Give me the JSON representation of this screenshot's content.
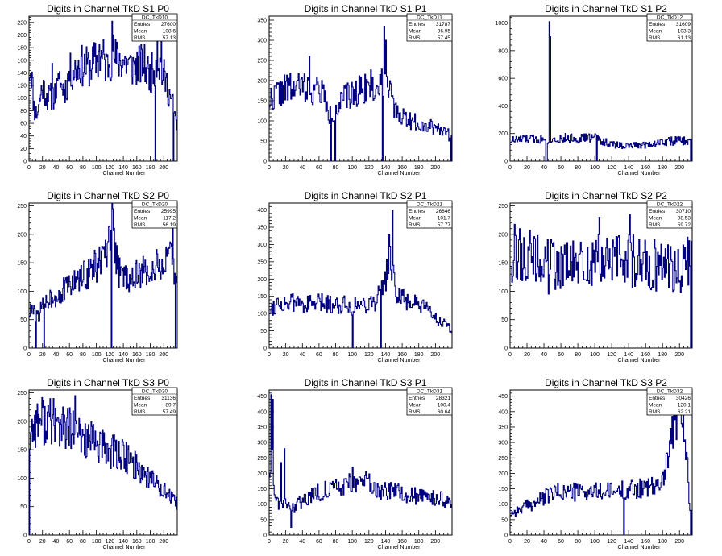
{
  "page": {
    "background": "#ffffff",
    "line_color": "#00007f",
    "axis_color": "#000000"
  },
  "chart_data": [
    {
      "type": "histogram",
      "id": "TkD10",
      "title": "Digits in Channel TkD S1 P0",
      "xlabel": "Channel Number",
      "xlim": [
        0,
        220
      ],
      "ylim": [
        0,
        230
      ],
      "xticks": [
        0,
        20,
        40,
        60,
        80,
        100,
        120,
        140,
        160,
        180,
        200
      ],
      "yticks": [
        0,
        20,
        40,
        60,
        80,
        100,
        120,
        140,
        160,
        180,
        200,
        220
      ],
      "stats": {
        "name": "DC_TkD10",
        "entries": "27600",
        "mean": "108.6",
        "rms": "57.13"
      },
      "keypoints": [
        [
          0,
          145
        ],
        [
          3,
          150
        ],
        [
          8,
          80
        ],
        [
          12,
          75
        ],
        [
          20,
          120
        ],
        [
          28,
          100
        ],
        [
          38,
          105
        ],
        [
          45,
          120
        ],
        [
          55,
          115
        ],
        [
          60,
          140
        ],
        [
          70,
          145
        ],
        [
          75,
          155
        ],
        [
          80,
          150
        ],
        [
          90,
          150
        ],
        [
          100,
          160
        ],
        [
          110,
          165
        ],
        [
          115,
          150
        ],
        [
          120,
          160
        ],
        [
          125,
          170
        ],
        [
          130,
          160
        ],
        [
          140,
          160
        ],
        [
          150,
          150
        ],
        [
          160,
          150
        ],
        [
          170,
          155
        ],
        [
          180,
          135
        ],
        [
          188,
          155
        ],
        [
          192,
          160
        ],
        [
          198,
          140
        ],
        [
          205,
          120
        ],
        [
          210,
          100
        ],
        [
          215,
          85
        ],
        [
          218,
          60
        ]
      ],
      "spikes": [
        [
          123,
          222
        ],
        [
          104,
          185
        ],
        [
          187,
          0
        ],
        [
          190,
          225
        ],
        [
          196,
          200
        ],
        [
          214,
          0
        ],
        [
          34,
          155
        ],
        [
          45,
          142
        ]
      ],
      "seed": 11
    },
    {
      "type": "histogram",
      "id": "TkD11",
      "title": "Digits in Channel TkD S1 P1",
      "xlabel": "Channel Number",
      "xlim": [
        0,
        220
      ],
      "ylim": [
        0,
        360
      ],
      "xticks": [
        0,
        20,
        40,
        60,
        80,
        100,
        120,
        140,
        160,
        180,
        200
      ],
      "yticks": [
        0,
        50,
        100,
        150,
        200,
        250,
        300,
        350
      ],
      "stats": {
        "name": "DC_TkD11",
        "entries": "31787",
        "mean": "96.95",
        "rms": "57.45"
      },
      "keypoints": [
        [
          0,
          150
        ],
        [
          10,
          170
        ],
        [
          20,
          180
        ],
        [
          30,
          180
        ],
        [
          40,
          185
        ],
        [
          50,
          180
        ],
        [
          60,
          175
        ],
        [
          66,
          170
        ],
        [
          70,
          120
        ],
        [
          75,
          110
        ],
        [
          80,
          130
        ],
        [
          85,
          140
        ],
        [
          90,
          155
        ],
        [
          100,
          165
        ],
        [
          110,
          180
        ],
        [
          120,
          190
        ],
        [
          130,
          175
        ],
        [
          135,
          200
        ],
        [
          140,
          210
        ],
        [
          145,
          200
        ],
        [
          150,
          120
        ],
        [
          160,
          115
        ],
        [
          170,
          100
        ],
        [
          180,
          95
        ],
        [
          190,
          90
        ],
        [
          200,
          85
        ],
        [
          210,
          80
        ],
        [
          218,
          60
        ]
      ],
      "spikes": [
        [
          138,
          335
        ],
        [
          140,
          300
        ],
        [
          74,
          0
        ],
        [
          79,
          0
        ],
        [
          136,
          0
        ],
        [
          218,
          0
        ],
        [
          48,
          260
        ],
        [
          112,
          180
        ]
      ],
      "seed": 22
    },
    {
      "type": "histogram",
      "id": "TkD12",
      "title": "Digits in Channel TkD S1 P2",
      "xlabel": "Channel Number",
      "xlim": [
        0,
        215
      ],
      "ylim": [
        0,
        1050
      ],
      "xticks": [
        0,
        20,
        40,
        60,
        80,
        100,
        120,
        140,
        160,
        180,
        200
      ],
      "yticks": [
        0,
        200,
        400,
        600,
        800,
        1000
      ],
      "stats": {
        "name": "DC_TkD12",
        "entries": "31609",
        "mean": "103.3",
        "rms": "61.13"
      },
      "keypoints": [
        [
          0,
          150
        ],
        [
          20,
          160
        ],
        [
          40,
          160
        ],
        [
          60,
          165
        ],
        [
          80,
          165
        ],
        [
          100,
          170
        ],
        [
          120,
          120
        ],
        [
          140,
          110
        ],
        [
          160,
          120
        ],
        [
          180,
          140
        ],
        [
          200,
          150
        ],
        [
          212,
          140
        ]
      ],
      "spikes": [
        [
          46,
          1010
        ],
        [
          47,
          900
        ],
        [
          43,
          0
        ],
        [
          102,
          0
        ],
        [
          213,
          0
        ],
        [
          42,
          0
        ]
      ],
      "seed": 33
    },
    {
      "type": "histogram",
      "id": "TkD20",
      "title": "Digits in Channel TkD S2 P0",
      "xlabel": "Channel Number",
      "xlim": [
        0,
        220
      ],
      "ylim": [
        0,
        255
      ],
      "xticks": [
        0,
        20,
        40,
        60,
        80,
        100,
        120,
        140,
        160,
        180,
        200
      ],
      "yticks": [
        0,
        50,
        100,
        150,
        200,
        250
      ],
      "stats": {
        "name": "DC_TkD20",
        "entries": "25995",
        "mean": "117.2",
        "rms": "56.19"
      },
      "keypoints": [
        [
          0,
          60
        ],
        [
          5,
          70
        ],
        [
          10,
          55
        ],
        [
          15,
          60
        ],
        [
          25,
          85
        ],
        [
          35,
          90
        ],
        [
          45,
          95
        ],
        [
          55,
          105
        ],
        [
          65,
          115
        ],
        [
          75,
          120
        ],
        [
          85,
          130
        ],
        [
          95,
          140
        ],
        [
          105,
          150
        ],
        [
          115,
          165
        ],
        [
          120,
          180
        ],
        [
          123,
          230
        ],
        [
          126,
          200
        ],
        [
          130,
          150
        ],
        [
          135,
          130
        ],
        [
          145,
          125
        ],
        [
          155,
          125
        ],
        [
          165,
          130
        ],
        [
          175,
          135
        ],
        [
          185,
          140
        ],
        [
          195,
          145
        ],
        [
          205,
          150
        ],
        [
          212,
          160
        ],
        [
          218,
          110
        ]
      ],
      "spikes": [
        [
          124,
          245
        ],
        [
          122,
          0
        ],
        [
          10,
          0
        ],
        [
          22,
          0
        ],
        [
          213,
          225
        ],
        [
          217,
          0
        ]
      ],
      "seed": 44
    },
    {
      "type": "histogram",
      "id": "TkD21",
      "title": "Digits in Channel TkD S2 P1",
      "xlabel": "Channel Number",
      "xlim": [
        0,
        220
      ],
      "ylim": [
        0,
        420
      ],
      "xticks": [
        0,
        20,
        40,
        60,
        80,
        100,
        120,
        140,
        160,
        180,
        200
      ],
      "yticks": [
        0,
        50,
        100,
        150,
        200,
        250,
        300,
        350,
        400
      ],
      "stats": {
        "name": "DC_TkD21",
        "entries": "26846",
        "mean": "101.7",
        "rms": "57.77"
      },
      "keypoints": [
        [
          0,
          110
        ],
        [
          10,
          130
        ],
        [
          20,
          130
        ],
        [
          30,
          130
        ],
        [
          40,
          130
        ],
        [
          50,
          125
        ],
        [
          60,
          130
        ],
        [
          70,
          130
        ],
        [
          80,
          125
        ],
        [
          90,
          130
        ],
        [
          100,
          120
        ],
        [
          110,
          125
        ],
        [
          120,
          130
        ],
        [
          130,
          140
        ],
        [
          140,
          200
        ],
        [
          145,
          260
        ],
        [
          150,
          200
        ],
        [
          155,
          150
        ],
        [
          160,
          140
        ],
        [
          170,
          135
        ],
        [
          180,
          120
        ],
        [
          190,
          110
        ],
        [
          200,
          90
        ],
        [
          210,
          70
        ],
        [
          218,
          55
        ]
      ],
      "spikes": [
        [
          148,
          400
        ],
        [
          144,
          330
        ],
        [
          100,
          0
        ],
        [
          134,
          0
        ]
      ],
      "seed": 55
    },
    {
      "type": "histogram",
      "id": "TkD22",
      "title": "Digits in Channel TkD S2 P2",
      "xlabel": "Channel Number",
      "xlim": [
        0,
        215
      ],
      "ylim": [
        0,
        255
      ],
      "xticks": [
        0,
        20,
        40,
        60,
        80,
        100,
        120,
        140,
        160,
        180,
        200
      ],
      "yticks": [
        0,
        50,
        100,
        150,
        200,
        250
      ],
      "stats": {
        "name": "DC_TkD22",
        "entries": "30710",
        "mean": "98.53",
        "rms": "59.72"
      },
      "keypoints": [
        [
          0,
          170
        ],
        [
          20,
          160
        ],
        [
          40,
          150
        ],
        [
          60,
          145
        ],
        [
          80,
          145
        ],
        [
          100,
          150
        ],
        [
          120,
          155
        ],
        [
          140,
          155
        ],
        [
          160,
          150
        ],
        [
          180,
          145
        ],
        [
          200,
          140
        ],
        [
          212,
          150
        ]
      ],
      "spikes": [
        [
          141,
          235
        ],
        [
          105,
          230
        ],
        [
          213,
          0
        ],
        [
          209,
          195
        ],
        [
          45,
          95
        ]
      ],
      "seed": 66,
      "noise": 0.32
    },
    {
      "type": "histogram",
      "id": "TkD30",
      "title": "Digits in Channel TkD S3 P0",
      "xlabel": "Channel Number",
      "xlim": [
        0,
        220
      ],
      "ylim": [
        0,
        255
      ],
      "xticks": [
        0,
        20,
        40,
        60,
        80,
        100,
        120,
        140,
        160,
        180,
        200
      ],
      "yticks": [
        0,
        50,
        100,
        150,
        200,
        250
      ],
      "stats": {
        "name": "DC_TkD30",
        "entries": "31136",
        "mean": "89.7",
        "rms": "57.49"
      },
      "keypoints": [
        [
          0,
          160
        ],
        [
          5,
          190
        ],
        [
          15,
          205
        ],
        [
          30,
          200
        ],
        [
          45,
          190
        ],
        [
          60,
          185
        ],
        [
          75,
          175
        ],
        [
          90,
          165
        ],
        [
          100,
          160
        ],
        [
          115,
          150
        ],
        [
          130,
          145
        ],
        [
          145,
          135
        ],
        [
          160,
          120
        ],
        [
          175,
          105
        ],
        [
          190,
          90
        ],
        [
          200,
          80
        ],
        [
          210,
          65
        ],
        [
          218,
          55
        ]
      ],
      "spikes": [
        [
          68,
          245
        ],
        [
          36,
          240
        ],
        [
          0,
          0
        ]
      ],
      "seed": 77
    },
    {
      "type": "histogram",
      "id": "TkD31",
      "title": "Digits in Channel TkD S3 P1",
      "xlabel": "Channel Number",
      "xlim": [
        0,
        220
      ],
      "ylim": [
        0,
        470
      ],
      "xticks": [
        0,
        20,
        40,
        60,
        80,
        100,
        120,
        140,
        160,
        180,
        200
      ],
      "yticks": [
        0,
        50,
        100,
        150,
        200,
        250,
        300,
        350,
        400,
        450
      ],
      "stats": {
        "name": "DC_TkD31",
        "entries": "28321",
        "mean": "100.4",
        "rms": "60.64"
      },
      "keypoints": [
        [
          0,
          200
        ],
        [
          3,
          250
        ],
        [
          6,
          150
        ],
        [
          10,
          110
        ],
        [
          15,
          100
        ],
        [
          20,
          110
        ],
        [
          25,
          100
        ],
        [
          30,
          90
        ],
        [
          40,
          110
        ],
        [
          50,
          130
        ],
        [
          60,
          140
        ],
        [
          70,
          145
        ],
        [
          80,
          150
        ],
        [
          90,
          160
        ],
        [
          100,
          170
        ],
        [
          110,
          175
        ],
        [
          120,
          165
        ],
        [
          130,
          150
        ],
        [
          140,
          140
        ],
        [
          150,
          140
        ],
        [
          160,
          135
        ],
        [
          170,
          130
        ],
        [
          180,
          125
        ],
        [
          190,
          120
        ],
        [
          200,
          120
        ],
        [
          210,
          115
        ],
        [
          218,
          95
        ]
      ],
      "spikes": [
        [
          2,
          455
        ],
        [
          4,
          440
        ],
        [
          14,
          235
        ],
        [
          18,
          280
        ],
        [
          26,
          25
        ],
        [
          100,
          220
        ]
      ],
      "seed": 88
    },
    {
      "type": "histogram",
      "id": "TkD32",
      "title": "Digits in Channel TkD S3 P2",
      "xlabel": "Channel Number",
      "xlim": [
        0,
        215
      ],
      "ylim": [
        0,
        470
      ],
      "xticks": [
        0,
        20,
        40,
        60,
        80,
        100,
        120,
        140,
        160,
        180,
        200
      ],
      "yticks": [
        0,
        50,
        100,
        150,
        200,
        250,
        300,
        350,
        400,
        450
      ],
      "stats": {
        "name": "DC_TkD32",
        "entries": "30426",
        "mean": "120.1",
        "rms": "62.21"
      },
      "keypoints": [
        [
          0,
          70
        ],
        [
          10,
          80
        ],
        [
          20,
          95
        ],
        [
          30,
          105
        ],
        [
          40,
          120
        ],
        [
          50,
          135
        ],
        [
          60,
          140
        ],
        [
          70,
          140
        ],
        [
          80,
          140
        ],
        [
          90,
          140
        ],
        [
          100,
          140
        ],
        [
          110,
          140
        ],
        [
          120,
          140
        ],
        [
          130,
          145
        ],
        [
          140,
          150
        ],
        [
          150,
          150
        ],
        [
          160,
          150
        ],
        [
          170,
          155
        ],
        [
          180,
          180
        ],
        [
          185,
          250
        ],
        [
          190,
          320
        ],
        [
          195,
          380
        ],
        [
          200,
          400
        ],
        [
          205,
          350
        ],
        [
          210,
          200
        ],
        [
          212,
          100
        ]
      ],
      "spikes": [
        [
          193,
          430
        ],
        [
          197,
          465
        ],
        [
          200,
          460
        ],
        [
          134,
          0
        ],
        [
          165,
          160
        ],
        [
          178,
          170
        ],
        [
          213,
          0
        ]
      ],
      "seed": 99
    }
  ]
}
